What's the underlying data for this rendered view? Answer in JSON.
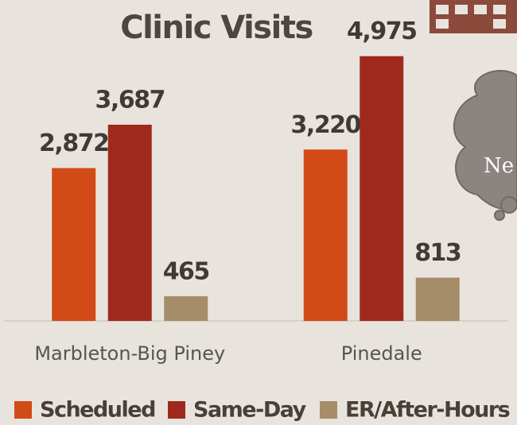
{
  "chart_data": {
    "type": "bar",
    "title": "Clinic Visits",
    "categories": [
      "Marbleton-Big Piney",
      "Pinedale"
    ],
    "series": [
      {
        "name": "Scheduled",
        "color": "#d24a17",
        "values": [
          2872,
          3220
        ],
        "value_labels": [
          "2,872",
          "3,220"
        ]
      },
      {
        "name": "Same-Day",
        "color": "#a0291e",
        "values": [
          3687,
          4975
        ],
        "value_labels": [
          "3,687",
          "4,975"
        ]
      },
      {
        "name": "ER/After-Hours",
        "color": "#a58d6a",
        "values": [
          465,
          813
        ],
        "value_labels": [
          "465",
          "813"
        ]
      }
    ],
    "ylim": [
      0,
      5000
    ],
    "annotations": [
      "Ne"
    ]
  }
}
